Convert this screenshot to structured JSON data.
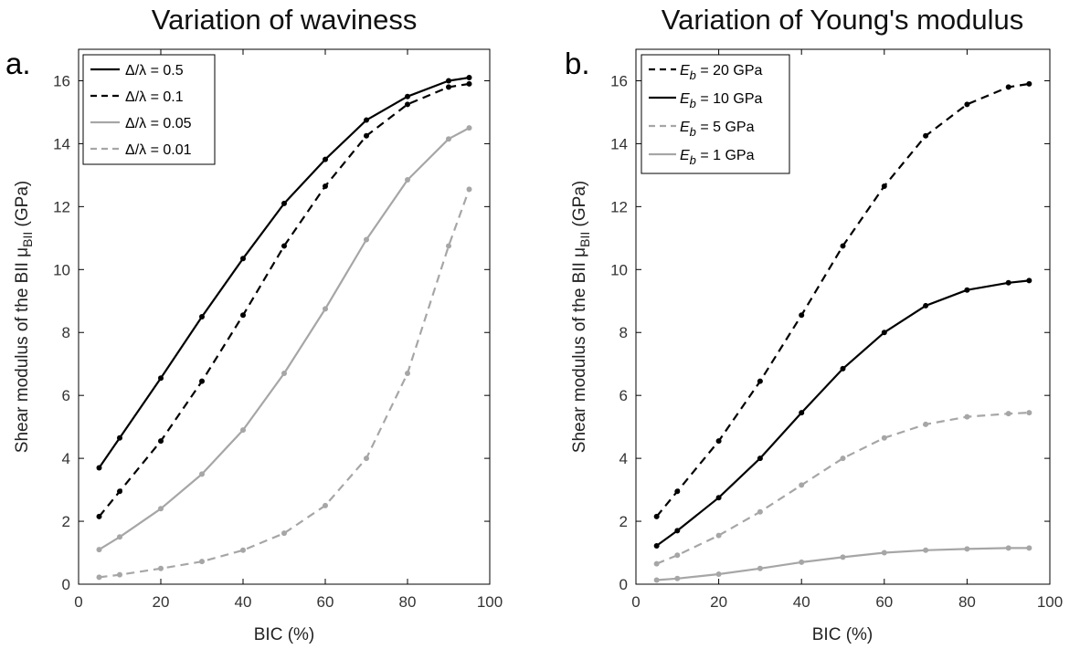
{
  "chart_data": [
    {
      "type": "line",
      "title": "Variation of waviness",
      "panel_label": "a.",
      "xlabel": "BIC (%)",
      "ylabel": "Shear modulus of the BII μ",
      "ylabel_sub": "BII",
      "ylabel_unit": " (GPa)",
      "xlim": [
        0,
        100
      ],
      "ylim": [
        0,
        17
      ],
      "xticks": [
        0,
        20,
        40,
        60,
        80,
        100
      ],
      "yticks": [
        0,
        2,
        4,
        6,
        8,
        10,
        12,
        14,
        16
      ],
      "grid": false,
      "legend_position": "top-left",
      "x": [
        5,
        10,
        20,
        30,
        40,
        50,
        60,
        70,
        80,
        90,
        95
      ],
      "series": [
        {
          "name": "Δ/λ = 0.5",
          "label_main": "Δ/λ = 0.5",
          "label_sub": "",
          "label_rest": "",
          "color": "#000000",
          "dash": "solid",
          "values": [
            3.7,
            4.65,
            6.55,
            8.5,
            10.35,
            12.1,
            13.5,
            14.75,
            15.5,
            16.0,
            16.1
          ]
        },
        {
          "name": "Δ/λ = 0.1",
          "label_main": "Δ/λ = 0.1",
          "label_sub": "",
          "label_rest": "",
          "color": "#000000",
          "dash": "dashed",
          "values": [
            2.15,
            2.95,
            4.55,
            6.45,
            8.55,
            10.75,
            12.65,
            14.25,
            15.25,
            15.8,
            15.9
          ]
        },
        {
          "name": "Δ/λ = 0.05",
          "label_main": "Δ/λ = 0.05",
          "label_sub": "",
          "label_rest": "",
          "color": "#a6a6a6",
          "dash": "solid",
          "values": [
            1.1,
            1.5,
            2.4,
            3.5,
            4.9,
            6.7,
            8.75,
            10.95,
            12.85,
            14.15,
            14.5
          ]
        },
        {
          "name": "Δ/λ = 0.01",
          "label_main": "Δ/λ = 0.01",
          "label_sub": "",
          "label_rest": "",
          "color": "#a6a6a6",
          "dash": "dashed",
          "values": [
            0.22,
            0.3,
            0.5,
            0.72,
            1.08,
            1.62,
            2.5,
            4.0,
            6.7,
            10.75,
            12.55
          ]
        }
      ]
    },
    {
      "type": "line",
      "title": "Variation of Young's modulus",
      "panel_label": "b.",
      "xlabel": "BIC (%)",
      "ylabel": "Shear modulus of the BII μ",
      "ylabel_sub": "BII",
      "ylabel_unit": " (GPa)",
      "xlim": [
        0,
        100
      ],
      "ylim": [
        0,
        17
      ],
      "xticks": [
        0,
        20,
        40,
        60,
        80,
        100
      ],
      "yticks": [
        0,
        2,
        4,
        6,
        8,
        10,
        12,
        14,
        16
      ],
      "grid": false,
      "legend_position": "top-left",
      "x": [
        5,
        10,
        20,
        30,
        40,
        50,
        60,
        70,
        80,
        90,
        95
      ],
      "series": [
        {
          "name": "E_b = 20 GPa",
          "label_main": "E",
          "label_sub": "b",
          "label_rest": " = 20 GPa",
          "color": "#000000",
          "dash": "dashed",
          "values": [
            2.15,
            2.95,
            4.55,
            6.45,
            8.55,
            10.75,
            12.65,
            14.25,
            15.25,
            15.8,
            15.9
          ]
        },
        {
          "name": "E_b = 10 GPa",
          "label_main": "E",
          "label_sub": "b",
          "label_rest": " = 10 GPa",
          "color": "#000000",
          "dash": "solid",
          "values": [
            1.22,
            1.7,
            2.75,
            4.0,
            5.45,
            6.85,
            8.0,
            8.85,
            9.35,
            9.58,
            9.65
          ]
        },
        {
          "name": "E_b = 5 GPa",
          "label_main": "E",
          "label_sub": "b",
          "label_rest": " = 5 GPa",
          "color": "#a6a6a6",
          "dash": "dashed",
          "values": [
            0.65,
            0.92,
            1.55,
            2.3,
            3.15,
            4.0,
            4.65,
            5.08,
            5.32,
            5.42,
            5.45
          ]
        },
        {
          "name": "E_b = 1 GPa",
          "label_main": "E",
          "label_sub": "b",
          "label_rest": " = 1 GPa",
          "color": "#a6a6a6",
          "dash": "solid",
          "values": [
            0.13,
            0.18,
            0.32,
            0.5,
            0.7,
            0.86,
            1.0,
            1.08,
            1.12,
            1.15,
            1.15
          ]
        }
      ]
    }
  ]
}
